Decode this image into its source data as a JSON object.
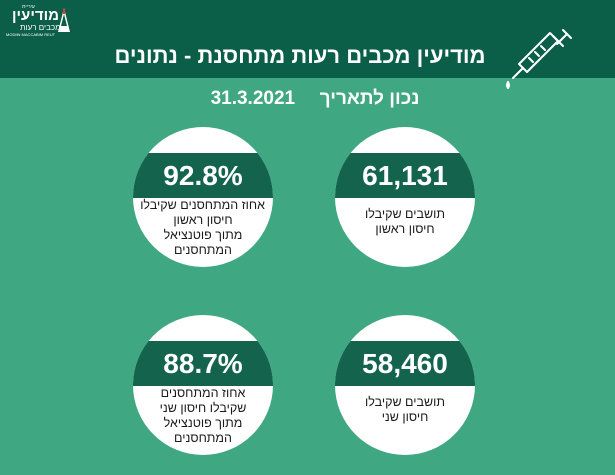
{
  "logo": {
    "top_text": "עיריית",
    "main_text": "מודיעין",
    "sub_text": "מכבים רעות",
    "tiny_text": "MODIIN MACCABIM REUT"
  },
  "title": "מודיעין מכבים רעות מתחסנת - נתונים",
  "date": {
    "label": "נכון לתאריך",
    "value": "31.3.2021"
  },
  "stats": [
    {
      "value": "61,131",
      "caption": [
        "תושבים שקיבלו",
        "חיסון ראשון"
      ]
    },
    {
      "value": "92.8%",
      "caption": [
        "אחוז המתחסנים שקיבלו",
        "חיסון ראשון",
        "מתוך פוטנציאל",
        "המתחסנים"
      ]
    },
    {
      "value": "58,460",
      "caption": [
        "תושבים שקיבלו",
        "חיסון שני"
      ]
    },
    {
      "value": "88.7%",
      "caption": [
        "אחוז המתחסנים",
        "שקיבלו חיסון שני",
        "מתוך פוטנציאל",
        "המתחסנים"
      ]
    }
  ],
  "colors": {
    "background": "#3fa882",
    "header": "#0b5e48",
    "band": "#14644d",
    "circle": "#ffffff"
  },
  "icons": [
    "syringe-icon",
    "logo-mountain-icon"
  ]
}
